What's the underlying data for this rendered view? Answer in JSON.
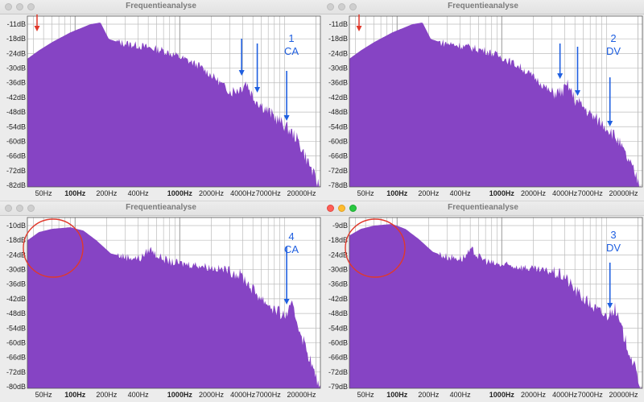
{
  "windows": [
    {
      "title": "Frequentieanalyse",
      "active": false,
      "y_labels": [
        "-11dB",
        "-18dB",
        "-24dB",
        "-30dB",
        "-36dB",
        "-42dB",
        "-48dB",
        "-54dB",
        "-60dB",
        "-66dB",
        "-72dB",
        "-82dB"
      ],
      "x_labels": [
        "50Hz",
        "100Hz",
        "200Hz",
        "400Hz",
        "1000Hz",
        "2000Hz",
        "4000Hz",
        "7000Hz",
        "20000Hz"
      ],
      "annotation": [
        "1",
        "CA"
      ],
      "blue_arrows": 3,
      "red_arrow": true,
      "red_circle": false
    },
    {
      "title": "Frequentieanalyse",
      "active": false,
      "y_labels": [
        "-11dB",
        "-18dB",
        "-24dB",
        "-30dB",
        "-36dB",
        "-42dB",
        "-48dB",
        "-54dB",
        "-60dB",
        "-66dB",
        "-72dB",
        "-78dB"
      ],
      "x_labels": [
        "50Hz",
        "100Hz",
        "200Hz",
        "400Hz",
        "1000Hz",
        "2000Hz",
        "4000Hz",
        "7000Hz",
        "20000Hz"
      ],
      "annotation": [
        "2",
        "DV"
      ],
      "blue_arrows": 3,
      "red_arrow": true,
      "red_circle": false
    },
    {
      "title": "Frequentieanalyse",
      "active": false,
      "y_labels": [
        "-10dB",
        "-18dB",
        "-24dB",
        "-30dB",
        "-36dB",
        "-42dB",
        "-48dB",
        "-54dB",
        "-60dB",
        "-66dB",
        "-72dB",
        "-80dB"
      ],
      "x_labels": [
        "50Hz",
        "100Hz",
        "200Hz",
        "400Hz",
        "1000Hz",
        "2000Hz",
        "4000Hz",
        "7000Hz",
        "20000Hz"
      ],
      "annotation": [
        "4",
        "CA"
      ],
      "blue_arrows": 1,
      "red_arrow": false,
      "red_circle": true
    },
    {
      "title": "Frequentieanalyse",
      "active": true,
      "y_labels": [
        "-9dB",
        "-18dB",
        "-24dB",
        "-30dB",
        "-36dB",
        "-42dB",
        "-48dB",
        "-54dB",
        "-60dB",
        "-66dB",
        "-72dB",
        "-79dB"
      ],
      "x_labels": [
        "50Hz",
        "100Hz",
        "200Hz",
        "400Hz",
        "1000Hz",
        "2000Hz",
        "4000Hz",
        "7000Hz",
        "20000Hz"
      ],
      "annotation": [
        "3",
        "DV"
      ],
      "blue_arrows": 1,
      "red_arrow": false,
      "red_circle": true
    }
  ],
  "colors": {
    "fill": "#8644c4",
    "grid": "#bdbdbd",
    "blue_arrow": "#1f5fe0",
    "red_mark": "#e0392b",
    "annotation_text": "#1f5fe0"
  }
}
